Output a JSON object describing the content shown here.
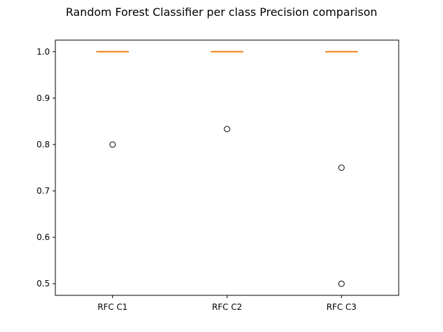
{
  "chart_data": {
    "type": "box",
    "title": "Random Forest Classifier per class Precision comparison",
    "xlabel": "",
    "ylabel": "",
    "categories": [
      "RFC C1",
      "RFC C2",
      "RFC C3"
    ],
    "ylim": [
      0.475,
      1.025
    ],
    "yticks": [
      "0.5",
      "0.6",
      "0.7",
      "0.8",
      "0.9",
      "1.0"
    ],
    "grid": false,
    "boxes": [
      {
        "category": "RFC C1",
        "min": 1.0,
        "q1": 1.0,
        "median": 1.0,
        "q3": 1.0,
        "max": 1.0,
        "outliers": [
          0.8
        ]
      },
      {
        "category": "RFC C2",
        "min": 1.0,
        "q1": 1.0,
        "median": 1.0,
        "q3": 1.0,
        "max": 1.0,
        "outliers": [
          0.8333
        ]
      },
      {
        "category": "RFC C3",
        "min": 1.0,
        "q1": 1.0,
        "median": 1.0,
        "q3": 1.0,
        "max": 1.0,
        "outliers": [
          0.75,
          0.5
        ]
      }
    ],
    "colors": {
      "box": "#000000",
      "median": "#ff7f0e",
      "outlier_edge": "#000000"
    }
  }
}
